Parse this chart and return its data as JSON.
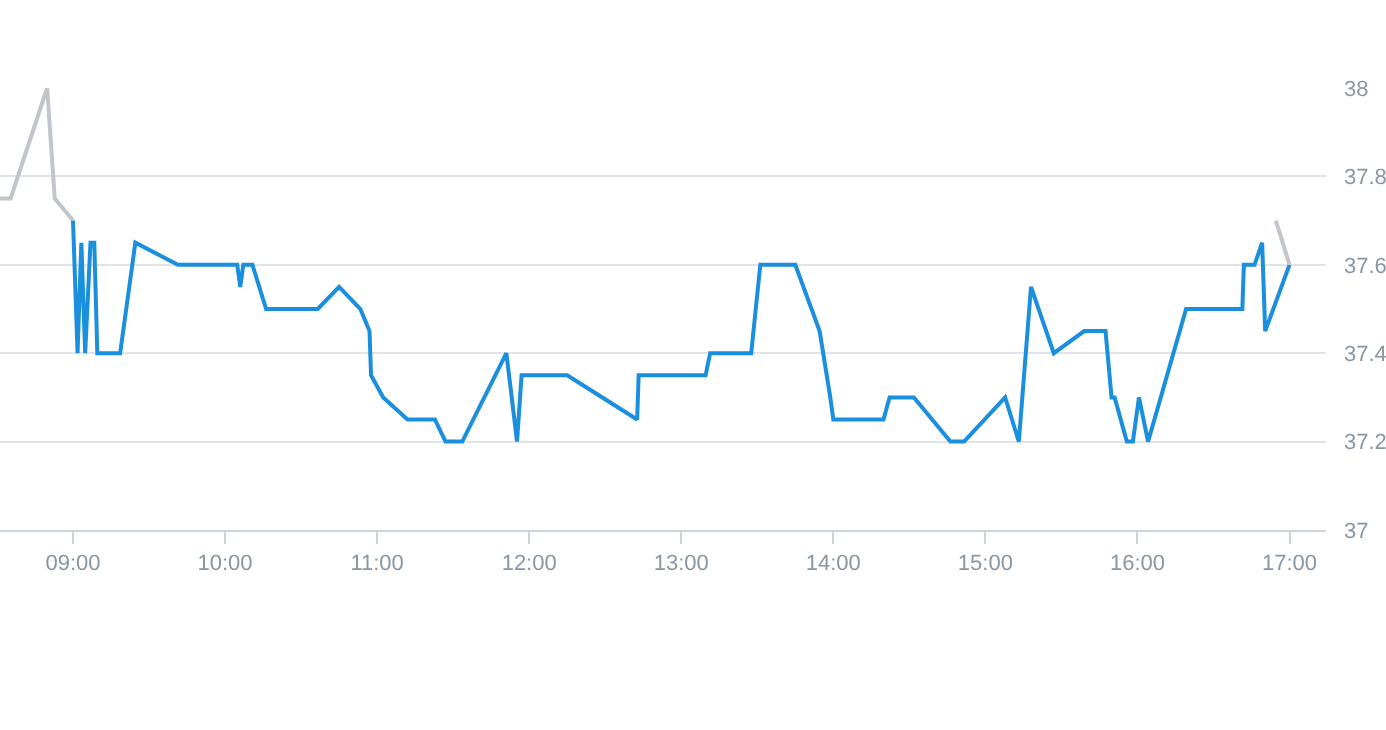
{
  "chart_data": {
    "type": "line",
    "series": [
      {
        "color": "#c0c6cc",
        "x": [
          8.52,
          8.59,
          8.83,
          8.88,
          9.0
        ],
        "values": [
          37.75,
          37.75,
          38.0,
          37.75,
          37.7
        ]
      },
      {
        "color": "#1a8fdd",
        "x": [
          9.0,
          9.03,
          9.055,
          9.08,
          9.115,
          9.14,
          9.16,
          9.31,
          9.41,
          9.69,
          10.08,
          10.1,
          10.12,
          10.18,
          10.27,
          10.61,
          10.75,
          10.89,
          10.95,
          10.96,
          11.04,
          11.2,
          11.38,
          11.45,
          11.56,
          11.85,
          11.92,
          11.95,
          12.25,
          12.71,
          12.72,
          13.16,
          13.19,
          13.46,
          13.52,
          13.75,
          13.91,
          13.98,
          14.0,
          14.33,
          14.37,
          14.53,
          14.77,
          14.86,
          15.13,
          15.22,
          15.3,
          15.45,
          15.65,
          15.79,
          15.83,
          15.85,
          15.93,
          15.97,
          16.01,
          16.07,
          16.32,
          16.69,
          16.7,
          16.77,
          16.82,
          16.84,
          17.0
        ],
        "values": [
          37.7,
          37.4,
          37.65,
          37.4,
          37.65,
          37.65,
          37.4,
          37.4,
          37.65,
          37.6,
          37.6,
          37.55,
          37.6,
          37.6,
          37.5,
          37.5,
          37.55,
          37.5,
          37.45,
          37.35,
          37.3,
          37.25,
          37.25,
          37.2,
          37.2,
          37.4,
          37.2,
          37.35,
          37.35,
          37.25,
          37.35,
          37.35,
          37.4,
          37.4,
          37.6,
          37.6,
          37.45,
          37.3,
          37.25,
          37.25,
          37.3,
          37.3,
          37.2,
          37.2,
          37.3,
          37.2,
          37.55,
          37.4,
          37.45,
          37.45,
          37.3,
          37.3,
          37.2,
          37.2,
          37.3,
          37.2,
          37.5,
          37.5,
          37.6,
          37.6,
          37.65,
          37.45,
          37.6
        ]
      },
      {
        "color": "#c0c6cc",
        "x": [
          16.91,
          17.0
        ],
        "values": [
          37.7,
          37.6
        ]
      }
    ],
    "xlim": [
      8.52,
      17.24
    ],
    "xticks": [
      {
        "value": 9,
        "label": "09:00"
      },
      {
        "value": 10,
        "label": "10:00"
      },
      {
        "value": 11,
        "label": "11:00"
      },
      {
        "value": 12,
        "label": "12:00"
      },
      {
        "value": 13,
        "label": "13:00"
      },
      {
        "value": 14,
        "label": "14:00"
      },
      {
        "value": 15,
        "label": "15:00"
      },
      {
        "value": 16,
        "label": "16:00"
      },
      {
        "value": 17,
        "label": "17:00"
      }
    ],
    "ylim": [
      37,
      38
    ],
    "yticks": [
      37,
      37.2,
      37.4,
      37.6,
      37.8,
      38
    ],
    "grid": "y",
    "marker": "none",
    "line_style": "solid"
  }
}
